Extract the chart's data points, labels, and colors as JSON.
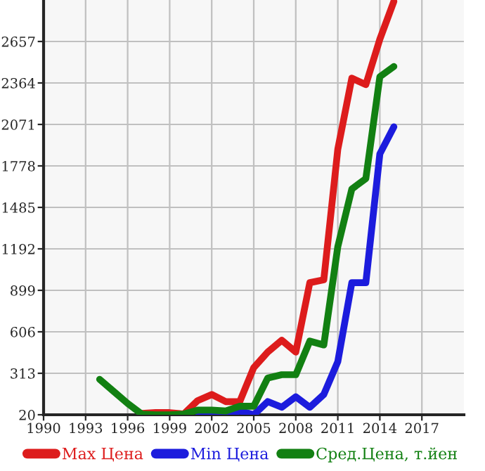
{
  "chart_data": {
    "type": "line",
    "x": [
      1994,
      1995,
      1996,
      1997,
      1998,
      1999,
      2000,
      2001,
      2002,
      2003,
      2004,
      2005,
      2006,
      2007,
      2008,
      2009,
      2010,
      2011,
      2012,
      2013,
      2014,
      2015
    ],
    "series": [
      {
        "name": "Max Цена",
        "color": "#dd1c1c",
        "values": [
          null,
          null,
          null,
          30,
          35,
          35,
          25,
          120,
          163,
          113,
          113,
          353,
          463,
          546,
          463,
          953,
          973,
          1896,
          2398,
          2352,
          2673,
          2940
        ]
      },
      {
        "name": "Min Цена",
        "color": "#1c1cdd",
        "values": [
          null,
          null,
          null,
          null,
          null,
          null,
          null,
          40,
          40,
          20,
          47,
          20,
          113,
          73,
          147,
          73,
          163,
          396,
          953,
          953,
          1863,
          2054
        ]
      },
      {
        "name": "Сред.Цена, т.йен",
        "color": "#128012",
        "values": [
          270,
          185,
          100,
          25,
          20,
          20,
          25,
          53,
          53,
          47,
          80,
          80,
          280,
          303,
          303,
          540,
          513,
          1208,
          1615,
          1688,
          2408,
          2480
        ]
      }
    ],
    "xlim": [
      1990,
      2020
    ],
    "xticks": [
      1990,
      1993,
      1996,
      1999,
      2002,
      2005,
      2008,
      2011,
      2014,
      2017
    ],
    "ylim": [
      20,
      2950
    ],
    "yticks": [
      20,
      313,
      606,
      899,
      1192,
      1485,
      1778,
      2071,
      2364,
      2657
    ],
    "grid": true,
    "legend": "bottom",
    "marker": "none",
    "line_style": "solid"
  }
}
